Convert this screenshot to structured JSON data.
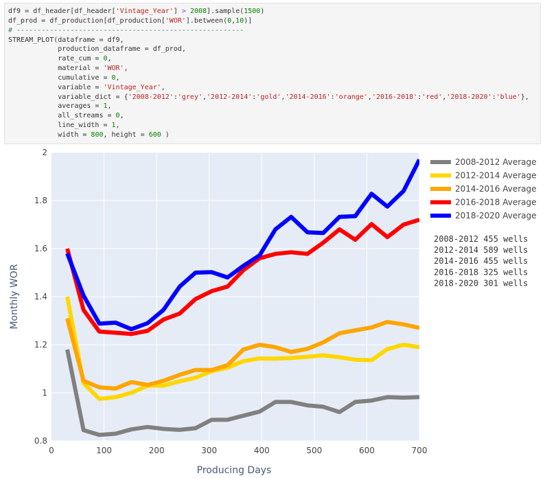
{
  "code_cell": {
    "lines": [
      [
        {
          "t": "df9 = df_header[df_header["
        },
        {
          "t": "'Vintage_Year'",
          "c": "str"
        },
        {
          "t": "] "
        },
        {
          "t": ">",
          "c": "op"
        },
        {
          "t": " "
        },
        {
          "t": "2008",
          "c": "num"
        },
        {
          "t": "].sample("
        },
        {
          "t": "1500",
          "c": "num"
        },
        {
          "t": ")"
        }
      ],
      [
        {
          "t": "df_prod = df_production[df_production["
        },
        {
          "t": "'WOR'",
          "c": "str"
        },
        {
          "t": "].between("
        },
        {
          "t": "0",
          "c": "num"
        },
        {
          "t": ","
        },
        {
          "t": "10",
          "c": "num"
        },
        {
          "t": ")]"
        }
      ],
      [
        {
          "t": "# -------------------------------------------------------",
          "c": "cmt"
        }
      ],
      [
        {
          "t": "STREAM_PLOT(dataframe = df9,"
        }
      ],
      [
        {
          "t": "            production_dataframe = df_prod,"
        }
      ],
      [
        {
          "t": "            rate_cum = "
        },
        {
          "t": "0",
          "c": "num"
        },
        {
          "t": ","
        }
      ],
      [
        {
          "t": "            material = "
        },
        {
          "t": "'WOR'",
          "c": "str"
        },
        {
          "t": ","
        }
      ],
      [
        {
          "t": "            cumulative = "
        },
        {
          "t": "0",
          "c": "num"
        },
        {
          "t": ","
        }
      ],
      [
        {
          "t": "            variable = "
        },
        {
          "t": "'Vintage_Year'",
          "c": "str"
        },
        {
          "t": ","
        }
      ],
      [
        {
          "t": "            variable_dict = {"
        },
        {
          "t": "'2008-2012'",
          "c": "str"
        },
        {
          "t": ":"
        },
        {
          "t": "'grey'",
          "c": "str"
        },
        {
          "t": ","
        },
        {
          "t": "'2012-2014'",
          "c": "str"
        },
        {
          "t": ":"
        },
        {
          "t": "'gold'",
          "c": "str"
        },
        {
          "t": ","
        },
        {
          "t": "'2014-2016'",
          "c": "str"
        },
        {
          "t": ":"
        },
        {
          "t": "'orange'",
          "c": "str"
        },
        {
          "t": ","
        },
        {
          "t": "'2016-2018'",
          "c": "str"
        },
        {
          "t": ":"
        },
        {
          "t": "'red'",
          "c": "str"
        },
        {
          "t": ","
        },
        {
          "t": "'2018-2020'",
          "c": "str"
        },
        {
          "t": ":"
        },
        {
          "t": "'blue'",
          "c": "str"
        },
        {
          "t": "},"
        }
      ],
      [
        {
          "t": "            averages = "
        },
        {
          "t": "1",
          "c": "num"
        },
        {
          "t": ","
        }
      ],
      [
        {
          "t": "            all_streams = "
        },
        {
          "t": "0",
          "c": "num"
        },
        {
          "t": ","
        }
      ],
      [
        {
          "t": "            line_width = "
        },
        {
          "t": "1",
          "c": "num"
        },
        {
          "t": ","
        }
      ],
      [
        {
          "t": "            width = "
        },
        {
          "t": "800",
          "c": "num"
        },
        {
          "t": ", height = "
        },
        {
          "t": "600",
          "c": "num"
        },
        {
          "t": " )"
        }
      ]
    ]
  },
  "chart_data": {
    "type": "line",
    "title": "",
    "xlabel": "Producing Days",
    "ylabel": "Monthly WOR",
    "xlim": [
      0,
      700
    ],
    "ylim": [
      0.8,
      2.0
    ],
    "x_ticks": [
      0,
      100,
      200,
      300,
      400,
      500,
      600,
      700
    ],
    "y_ticks": [
      0.8,
      1.0,
      1.2,
      1.4,
      1.6,
      1.8,
      2.0
    ],
    "y_tick_labels": [
      "0.8",
      "1",
      "1.2",
      "1.4",
      "1.6",
      "1.8",
      "2"
    ],
    "grid": true,
    "plot_background": "#e5ecf6",
    "legend_position": "right",
    "x": [
      30,
      61,
      91,
      122,
      152,
      183,
      213,
      244,
      274,
      305,
      335,
      365,
      396,
      426,
      456,
      487,
      517,
      548,
      578,
      609,
      639,
      670,
      700
    ],
    "series": [
      {
        "name": "2008-2012 Average",
        "color": "#808080",
        "values": [
          1.18,
          0.845,
          0.825,
          0.83,
          0.848,
          0.858,
          0.85,
          0.846,
          0.853,
          0.888,
          0.888,
          0.905,
          0.922,
          0.962,
          0.962,
          0.948,
          0.942,
          0.92,
          0.962,
          0.968,
          0.982,
          0.98,
          0.982
        ]
      },
      {
        "name": "2012-2014 Average",
        "color": "#ffd700",
        "values": [
          1.4,
          1.04,
          0.975,
          0.982,
          1.0,
          1.03,
          1.03,
          1.048,
          1.063,
          1.09,
          1.105,
          1.132,
          1.143,
          1.142,
          1.145,
          1.15,
          1.156,
          1.148,
          1.138,
          1.136,
          1.182,
          1.2,
          1.19
        ]
      },
      {
        "name": "2014-2016 Average",
        "color": "#ffa500",
        "values": [
          1.31,
          1.05,
          1.023,
          1.018,
          1.045,
          1.033,
          1.05,
          1.075,
          1.095,
          1.095,
          1.115,
          1.18,
          1.2,
          1.19,
          1.17,
          1.183,
          1.21,
          1.248,
          1.26,
          1.272,
          1.295,
          1.285,
          1.27
        ]
      },
      {
        "name": "2016-2018 Average",
        "color": "#ff0000",
        "values": [
          1.6,
          1.345,
          1.255,
          1.25,
          1.245,
          1.258,
          1.305,
          1.33,
          1.39,
          1.423,
          1.442,
          1.51,
          1.56,
          1.578,
          1.585,
          1.578,
          1.625,
          1.68,
          1.637,
          1.702,
          1.648,
          1.7,
          1.72
        ]
      },
      {
        "name": "2018-2020 Average",
        "color": "#0000ff",
        "values": [
          1.58,
          1.405,
          1.288,
          1.292,
          1.265,
          1.29,
          1.345,
          1.442,
          1.5,
          1.502,
          1.48,
          1.528,
          1.572,
          1.68,
          1.732,
          1.668,
          1.665,
          1.732,
          1.735,
          1.828,
          1.775,
          1.84,
          1.97
        ]
      }
    ],
    "annotation_lines": [
      "2008-2012 455 wells",
      "2012-2014 589 wells",
      "2014-2016 455 wells",
      "2016-2018 325 wells",
      "2018-2020 301 wells"
    ]
  }
}
